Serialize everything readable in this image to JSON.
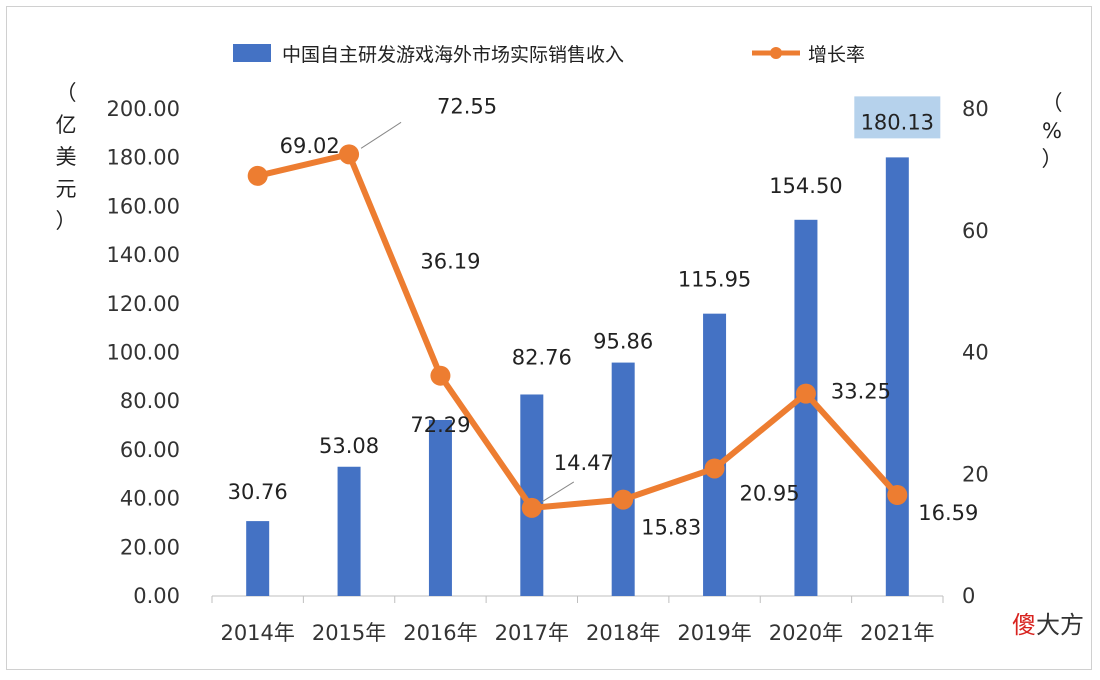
{
  "chart_data": {
    "type": "bar",
    "categories": [
      "2014年",
      "2015年",
      "2016年",
      "2017年",
      "2018年",
      "2019年",
      "2020年",
      "2021年"
    ],
    "series": [
      {
        "name": "中国自主研发游戏海外市场实际销售收入",
        "type": "bar",
        "axis": "left",
        "values": [
          30.76,
          53.08,
          72.29,
          82.76,
          95.86,
          115.95,
          154.5,
          180.13
        ]
      },
      {
        "name": "增长率",
        "type": "line",
        "axis": "right",
        "values": [
          69.02,
          72.55,
          36.19,
          14.47,
          15.83,
          20.95,
          33.25,
          16.59
        ]
      }
    ],
    "y_left": {
      "unit_chars": [
        "（",
        "亿",
        "美",
        "元",
        "）"
      ],
      "ylim": [
        0,
        200
      ],
      "ticks": [
        "0.00",
        "20.00",
        "40.00",
        "60.00",
        "80.00",
        "100.00",
        "120.00",
        "140.00",
        "160.00",
        "180.00",
        "200.00"
      ]
    },
    "y_right": {
      "unit_chars": [
        "（",
        "%",
        "）"
      ],
      "ylim": [
        0,
        80
      ],
      "ticks": [
        "0",
        "20",
        "40",
        "60",
        "80"
      ]
    },
    "legend_placement": "top",
    "grid": false,
    "colors": {
      "bar": "#4472c4",
      "line": "#ed7d31",
      "highlight": "#9dc3e6"
    }
  },
  "watermark": {
    "first": "傻",
    "rest": "大方"
  }
}
